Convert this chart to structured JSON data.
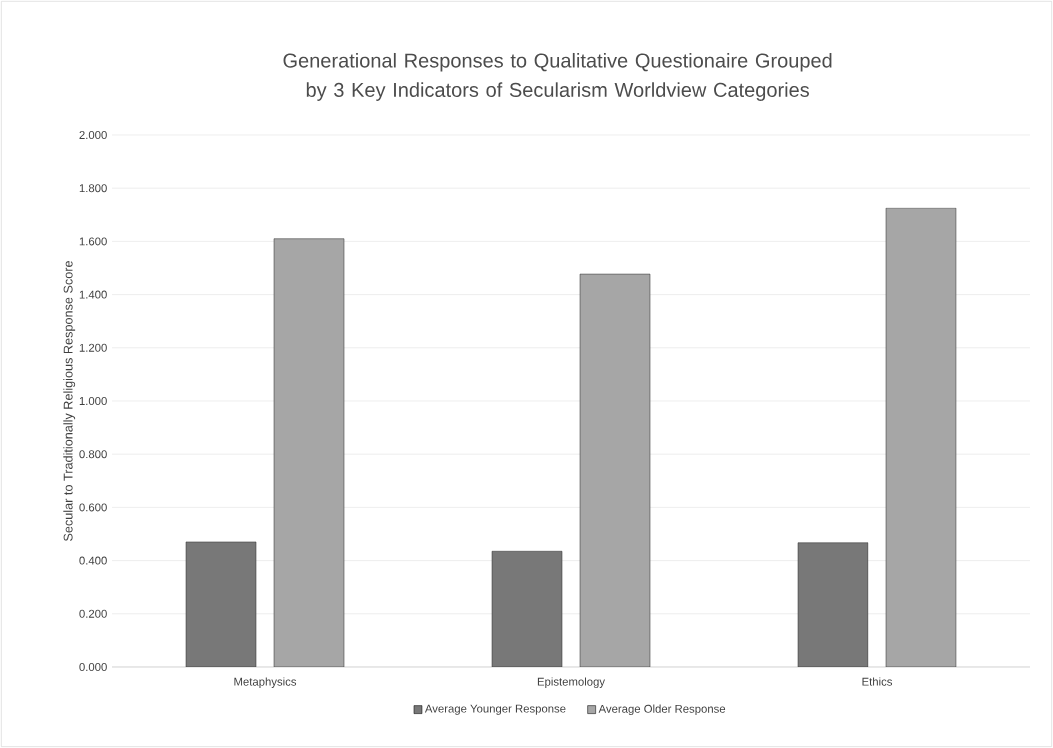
{
  "chart_data": {
    "type": "bar",
    "title": "Generational Responses to Qualitative Questionaire Grouped by 3 Key Indicators of Secularism Worldview Categories",
    "ylabel": "Secular to Traditionally Religious Response Score",
    "categories": [
      "Metaphysics",
      "Epistemology",
      "Ethics"
    ],
    "series": [
      {
        "name": "Average Younger Response",
        "color": "#787878",
        "values": [
          0.47,
          0.435,
          0.467
        ]
      },
      {
        "name": "Average Older Response",
        "color": "#a6a6a6",
        "values": [
          1.61,
          1.477,
          1.725
        ]
      }
    ],
    "ylim": [
      0,
      2
    ],
    "yticks": [
      {
        "value": 0,
        "label": "0.000"
      },
      {
        "value": 0.2,
        "label": "0.200"
      },
      {
        "value": 0.4,
        "label": "0.400"
      },
      {
        "value": 0.6,
        "label": "0.600"
      },
      {
        "value": 0.8,
        "label": "0.800"
      },
      {
        "value": 1,
        "label": "1.000"
      },
      {
        "value": 1.2,
        "label": "1.200"
      },
      {
        "value": 1.4,
        "label": "1.400"
      },
      {
        "value": 1.6,
        "label": "1.600"
      },
      {
        "value": 1.8,
        "label": "1.800"
      },
      {
        "value": 2,
        "label": "2.000"
      }
    ],
    "grid": "y",
    "legend": "bottom"
  }
}
